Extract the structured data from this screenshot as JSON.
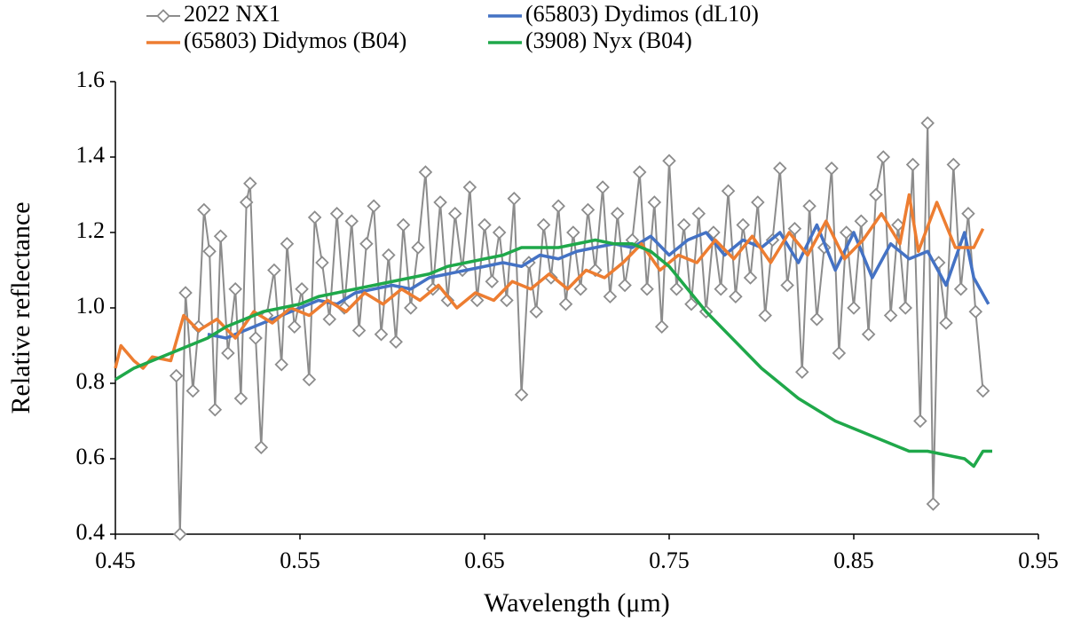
{
  "chart_data": {
    "type": "line",
    "x_label": "Wavelength (μm)",
    "y_label": "Relative reflectance",
    "xlim": [
      0.45,
      0.95
    ],
    "xticks": [
      0.45,
      0.55,
      0.65,
      0.75,
      0.85,
      0.95
    ],
    "ylim": [
      0.4,
      1.6
    ],
    "yticks": [
      0.4,
      0.6,
      0.8,
      {
        "value": 1,
        "label": "1.0"
      },
      1.2,
      1.4,
      1.6
    ],
    "grid": false,
    "legend": "top",
    "series": [
      {
        "name": "2022 NX1",
        "color": "#8c8c8c",
        "marker": "diamond",
        "x": [
          0.483,
          0.485,
          0.488,
          0.492,
          0.495,
          0.498,
          0.501,
          0.504,
          0.507,
          0.511,
          0.515,
          0.518,
          0.521,
          0.523,
          0.526,
          0.529,
          0.532,
          0.536,
          0.54,
          0.543,
          0.547,
          0.551,
          0.555,
          0.558,
          0.562,
          0.566,
          0.57,
          0.574,
          0.578,
          0.582,
          0.586,
          0.59,
          0.594,
          0.598,
          0.602,
          0.606,
          0.61,
          0.614,
          0.618,
          0.622,
          0.626,
          0.63,
          0.634,
          0.638,
          0.642,
          0.646,
          0.65,
          0.654,
          0.658,
          0.662,
          0.666,
          0.67,
          0.674,
          0.678,
          0.682,
          0.686,
          0.69,
          0.694,
          0.698,
          0.702,
          0.706,
          0.71,
          0.714,
          0.718,
          0.722,
          0.726,
          0.73,
          0.734,
          0.738,
          0.742,
          0.746,
          0.75,
          0.754,
          0.758,
          0.762,
          0.766,
          0.77,
          0.774,
          0.778,
          0.782,
          0.786,
          0.79,
          0.794,
          0.798,
          0.802,
          0.806,
          0.81,
          0.814,
          0.818,
          0.822,
          0.826,
          0.83,
          0.834,
          0.838,
          0.842,
          0.846,
          0.85,
          0.854,
          0.858,
          0.862,
          0.866,
          0.87,
          0.874,
          0.878,
          0.882,
          0.886,
          0.89,
          0.893,
          0.896,
          0.9,
          0.904,
          0.908,
          0.912,
          0.916,
          0.92
        ],
        "values": [
          0.82,
          0.4,
          1.04,
          0.78,
          0.95,
          1.26,
          1.15,
          0.73,
          1.19,
          0.88,
          1.05,
          0.76,
          1.28,
          1.33,
          0.92,
          0.63,
          0.98,
          1.1,
          0.85,
          1.17,
          0.95,
          1.05,
          0.81,
          1.24,
          1.12,
          0.97,
          1.25,
          1.0,
          1.23,
          0.94,
          1.17,
          1.27,
          0.93,
          1.14,
          0.91,
          1.22,
          1.0,
          1.16,
          1.36,
          1.05,
          1.28,
          1.02,
          1.25,
          1.1,
          1.32,
          1.02,
          1.22,
          1.07,
          1.2,
          1.02,
          1.29,
          0.77,
          1.12,
          0.99,
          1.22,
          1.08,
          1.27,
          1.01,
          1.2,
          1.05,
          1.26,
          1.1,
          1.32,
          1.03,
          1.25,
          1.06,
          1.18,
          1.36,
          1.05,
          1.28,
          0.95,
          1.39,
          1.05,
          1.22,
          1.01,
          1.25,
          0.99,
          1.2,
          1.05,
          1.31,
          1.03,
          1.22,
          1.08,
          1.28,
          0.98,
          1.18,
          1.37,
          1.06,
          1.21,
          0.83,
          1.27,
          0.97,
          1.16,
          1.37,
          0.88,
          1.2,
          1.0,
          1.23,
          0.93,
          1.3,
          1.4,
          0.98,
          1.22,
          1.0,
          1.38,
          0.7,
          1.49,
          0.48,
          1.12,
          0.96,
          1.38,
          1.05,
          1.25,
          0.99,
          0.78
        ]
      },
      {
        "name": "(65803) Dydimos (dL10)",
        "color": "#4472c4",
        "x": [
          0.5,
          0.51,
          0.52,
          0.53,
          0.54,
          0.55,
          0.56,
          0.57,
          0.58,
          0.59,
          0.6,
          0.61,
          0.62,
          0.63,
          0.64,
          0.65,
          0.66,
          0.67,
          0.68,
          0.69,
          0.7,
          0.71,
          0.72,
          0.73,
          0.74,
          0.75,
          0.76,
          0.77,
          0.78,
          0.79,
          0.8,
          0.81,
          0.82,
          0.83,
          0.84,
          0.85,
          0.86,
          0.87,
          0.88,
          0.89,
          0.9,
          0.91,
          0.915,
          0.923
        ],
        "values": [
          0.93,
          0.92,
          0.94,
          0.96,
          0.98,
          1.0,
          1.02,
          1.01,
          1.04,
          1.05,
          1.06,
          1.05,
          1.08,
          1.09,
          1.1,
          1.11,
          1.12,
          1.11,
          1.14,
          1.13,
          1.15,
          1.16,
          1.17,
          1.16,
          1.19,
          1.14,
          1.18,
          1.2,
          1.14,
          1.18,
          1.16,
          1.2,
          1.12,
          1.22,
          1.1,
          1.2,
          1.08,
          1.17,
          1.13,
          1.15,
          1.06,
          1.2,
          1.08,
          1.01
        ]
      },
      {
        "name": "(65803) Didymos (B04)",
        "color": "#ed7d31",
        "x": [
          0.45,
          0.453,
          0.46,
          0.465,
          0.47,
          0.48,
          0.487,
          0.495,
          0.505,
          0.515,
          0.525,
          0.535,
          0.545,
          0.555,
          0.565,
          0.575,
          0.585,
          0.595,
          0.605,
          0.615,
          0.625,
          0.635,
          0.645,
          0.655,
          0.665,
          0.675,
          0.685,
          0.695,
          0.705,
          0.715,
          0.725,
          0.735,
          0.745,
          0.755,
          0.765,
          0.775,
          0.785,
          0.795,
          0.805,
          0.815,
          0.825,
          0.835,
          0.845,
          0.855,
          0.865,
          0.875,
          0.88,
          0.885,
          0.895,
          0.905,
          0.915,
          0.92
        ],
        "values": [
          0.84,
          0.9,
          0.86,
          0.84,
          0.87,
          0.86,
          0.98,
          0.94,
          0.97,
          0.92,
          0.99,
          0.96,
          1.0,
          0.98,
          1.02,
          0.99,
          1.04,
          1.01,
          1.05,
          1.02,
          1.06,
          1.0,
          1.04,
          1.02,
          1.07,
          1.05,
          1.09,
          1.05,
          1.1,
          1.08,
          1.12,
          1.17,
          1.1,
          1.14,
          1.12,
          1.18,
          1.13,
          1.19,
          1.12,
          1.2,
          1.14,
          1.23,
          1.13,
          1.18,
          1.25,
          1.17,
          1.3,
          1.15,
          1.28,
          1.16,
          1.16,
          1.21
        ]
      },
      {
        "name": "(3908) Nyx (B04)",
        "color": "#1fa84a",
        "x": [
          0.45,
          0.46,
          0.47,
          0.48,
          0.49,
          0.5,
          0.51,
          0.52,
          0.53,
          0.54,
          0.55,
          0.56,
          0.57,
          0.58,
          0.59,
          0.6,
          0.61,
          0.62,
          0.63,
          0.64,
          0.65,
          0.66,
          0.67,
          0.68,
          0.69,
          0.7,
          0.71,
          0.72,
          0.73,
          0.74,
          0.75,
          0.76,
          0.77,
          0.78,
          0.79,
          0.8,
          0.81,
          0.82,
          0.83,
          0.84,
          0.85,
          0.86,
          0.87,
          0.88,
          0.89,
          0.9,
          0.91,
          0.915,
          0.92,
          0.925
        ],
        "values": [
          0.81,
          0.84,
          0.86,
          0.88,
          0.9,
          0.92,
          0.95,
          0.97,
          0.99,
          1.0,
          1.01,
          1.03,
          1.04,
          1.05,
          1.06,
          1.07,
          1.08,
          1.09,
          1.11,
          1.12,
          1.13,
          1.14,
          1.16,
          1.16,
          1.16,
          1.17,
          1.18,
          1.17,
          1.17,
          1.15,
          1.11,
          1.05,
          0.99,
          0.94,
          0.89,
          0.84,
          0.8,
          0.76,
          0.73,
          0.7,
          0.68,
          0.66,
          0.64,
          0.62,
          0.62,
          0.61,
          0.6,
          0.58,
          0.62,
          0.62
        ]
      }
    ]
  }
}
